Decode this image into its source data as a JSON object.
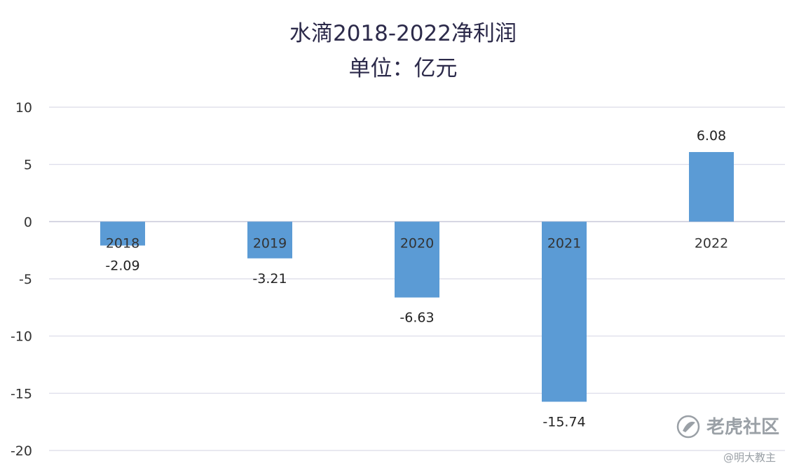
{
  "chart_data": {
    "type": "bar",
    "title_line1": "水滴2018-2022净利润",
    "title_line2": "单位：亿元",
    "categories": [
      "2018",
      "2019",
      "2020",
      "2021",
      "2022"
    ],
    "values": [
      -2.09,
      -3.21,
      -6.63,
      -15.74,
      6.08
    ],
    "data_labels": [
      "-2.09",
      "-3.21",
      "-6.63",
      "-15.74",
      "6.08"
    ],
    "ylim": [
      -20,
      10
    ],
    "yticks": [
      10,
      5,
      0,
      -5,
      -10,
      -15,
      -20
    ],
    "grid": true,
    "bar_color": "#5b9bd5"
  },
  "watermark": {
    "brand": "老虎社区",
    "author": "@明大教主"
  }
}
